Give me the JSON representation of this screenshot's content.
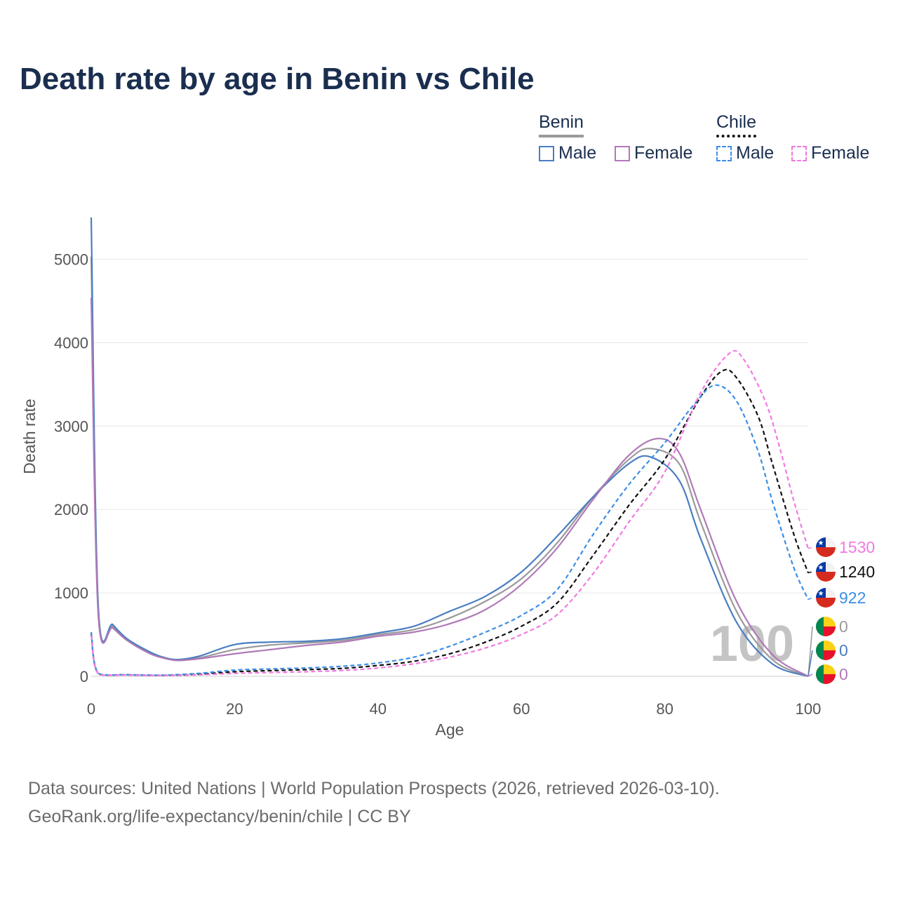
{
  "title": "Death rate by age in Benin vs Chile",
  "legend": {
    "groups": [
      {
        "name": "Benin",
        "underline_color": "#9a9a9a",
        "items": [
          {
            "label": "Male",
            "color": "#4a7ec2",
            "dashed": false
          },
          {
            "label": "Female",
            "color": "#b07ab8",
            "dashed": false
          }
        ]
      },
      {
        "name": "Chile",
        "underline_color": "#111111",
        "items": [
          {
            "label": "Male",
            "color": "#3c8ee6",
            "dashed": true
          },
          {
            "label": "Female",
            "color": "#f07ae0",
            "dashed": true
          }
        ]
      }
    ]
  },
  "chart_data": {
    "type": "line",
    "title": "Death rate by age in Benin vs Chile",
    "xlabel": "Age",
    "ylabel": "Death rate",
    "xlim": [
      0,
      100
    ],
    "ylim": [
      0,
      5500
    ],
    "xticks": [
      0,
      20,
      40,
      60,
      80,
      100
    ],
    "yticks": [
      0,
      1000,
      2000,
      3000,
      4000,
      5000
    ],
    "grid": true,
    "watermark": "100",
    "series": [
      {
        "name": "Benin Total",
        "color": "#9a9a9a",
        "dashed": false,
        "flag": "",
        "x": [
          0,
          1,
          3,
          5,
          8,
          10,
          12,
          15,
          20,
          25,
          30,
          35,
          40,
          45,
          50,
          55,
          60,
          65,
          70,
          75,
          78,
          82,
          85,
          90,
          95,
          100
        ],
        "y": [
          5030,
          780,
          600,
          440,
          290,
          225,
          200,
          220,
          320,
          375,
          400,
          430,
          500,
          560,
          700,
          900,
          1170,
          1600,
          2150,
          2600,
          2730,
          2550,
          1850,
          780,
          200,
          0
        ]
      },
      {
        "name": "Benin Male",
        "color": "#4a7ec2",
        "dashed": false,
        "flag": "benin",
        "end_label": "0",
        "x": [
          0,
          1,
          3,
          5,
          8,
          10,
          12,
          15,
          20,
          25,
          30,
          35,
          40,
          45,
          50,
          55,
          60,
          65,
          70,
          75,
          78,
          82,
          85,
          90,
          95,
          100
        ],
        "y": [
          5500,
          820,
          620,
          450,
          300,
          230,
          200,
          240,
          380,
          410,
          420,
          450,
          520,
          600,
          780,
          960,
          1250,
          1680,
          2150,
          2550,
          2630,
          2350,
          1650,
          650,
          150,
          0
        ]
      },
      {
        "name": "Benin Female",
        "color": "#b07ab8",
        "dashed": false,
        "flag": "benin",
        "end_label": "0",
        "x": [
          0,
          1,
          3,
          5,
          8,
          10,
          12,
          15,
          20,
          25,
          30,
          35,
          40,
          45,
          50,
          55,
          60,
          65,
          70,
          75,
          79,
          82,
          85,
          90,
          95,
          100
        ],
        "y": [
          4540,
          720,
          580,
          430,
          280,
          220,
          190,
          210,
          270,
          320,
          370,
          410,
          480,
          530,
          630,
          800,
          1100,
          1540,
          2120,
          2650,
          2850,
          2680,
          2000,
          900,
          260,
          0
        ]
      },
      {
        "name": "Chile Total",
        "color": "#111111",
        "dashed": true,
        "flag": "chile",
        "end_label": "1240",
        "x": [
          0,
          1,
          5,
          10,
          15,
          20,
          25,
          30,
          35,
          40,
          45,
          50,
          55,
          60,
          65,
          70,
          75,
          80,
          85,
          88,
          90,
          93,
          95,
          98,
          100
        ],
        "y": [
          510,
          30,
          18,
          12,
          25,
          55,
          68,
          80,
          95,
          130,
          180,
          270,
          410,
          600,
          880,
          1450,
          2050,
          2600,
          3350,
          3660,
          3580,
          3120,
          2550,
          1700,
          1240
        ]
      },
      {
        "name": "Chile Male",
        "color": "#3c8ee6",
        "dashed": true,
        "flag": "chile",
        "end_label": "922",
        "x": [
          0,
          1,
          5,
          10,
          15,
          20,
          25,
          30,
          35,
          40,
          45,
          50,
          55,
          60,
          65,
          70,
          75,
          80,
          84,
          87,
          90,
          93,
          95,
          98,
          100
        ],
        "y": [
          530,
          35,
          20,
          14,
          35,
          75,
          88,
          100,
          120,
          160,
          230,
          360,
          530,
          730,
          1040,
          1700,
          2300,
          2800,
          3250,
          3490,
          3300,
          2700,
          2100,
          1300,
          922
        ]
      },
      {
        "name": "Chile Female",
        "color": "#f07ae0",
        "dashed": true,
        "flag": "chile",
        "end_label": "1530",
        "x": [
          0,
          1,
          5,
          10,
          15,
          20,
          25,
          30,
          35,
          40,
          45,
          50,
          55,
          60,
          65,
          70,
          75,
          80,
          85,
          89,
          91,
          94,
          96,
          98,
          100
        ],
        "y": [
          490,
          28,
          15,
          10,
          18,
          35,
          45,
          55,
          70,
          100,
          150,
          230,
          340,
          500,
          740,
          1230,
          1850,
          2450,
          3400,
          3870,
          3800,
          3300,
          2750,
          2100,
          1530
        ]
      }
    ]
  },
  "footer": {
    "line1": "Data sources: United Nations | World Population Prospects (2026, retrieved 2026-03-10).",
    "line2": "GeoRank.org/life-expectancy/benin/chile | CC BY"
  }
}
